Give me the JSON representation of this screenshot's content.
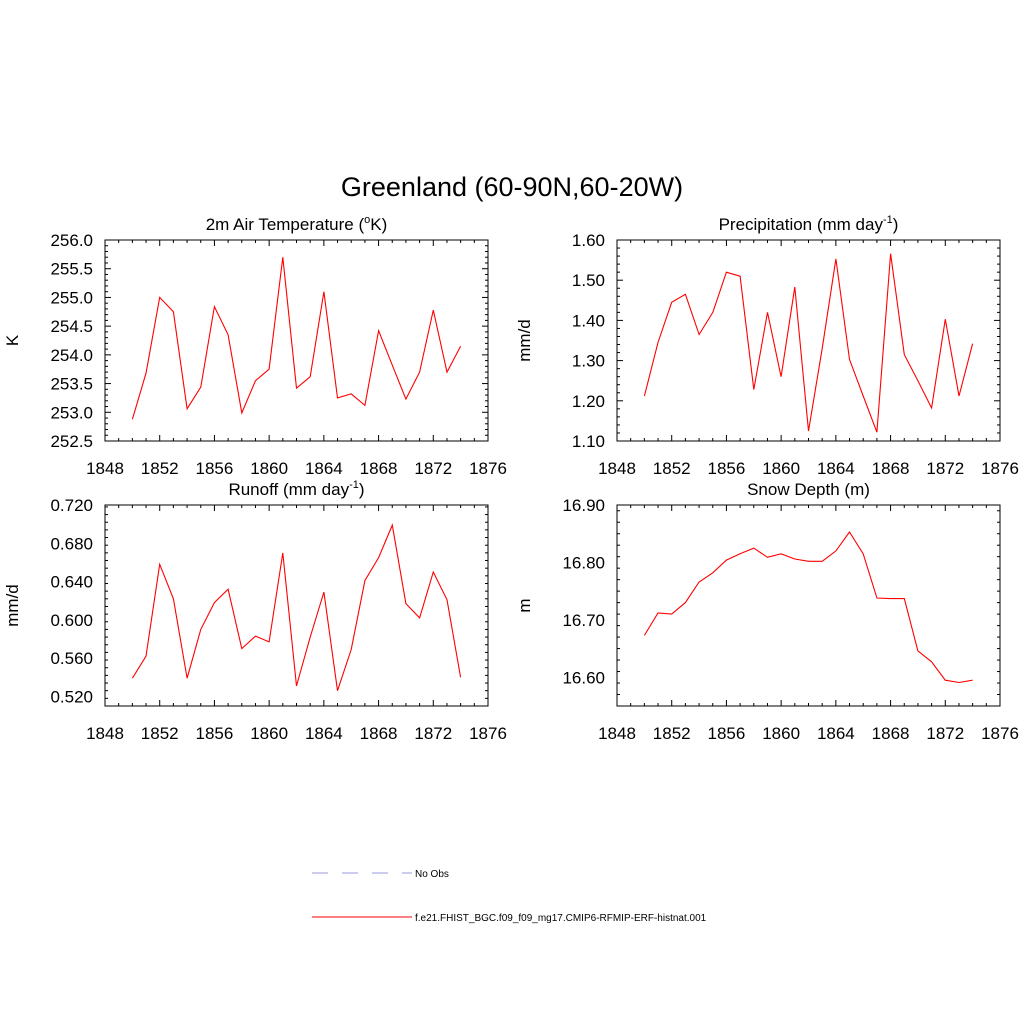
{
  "title": "Greenland (60-90N,60-20W)",
  "series_color": "#ff0000",
  "obs_color": "#9999dd",
  "legend": {
    "obs_label": "No Obs",
    "model_label": "f.e21.FHIST_BGC.f09_f09_mg17.CMIP6-RFMIP-ERF-histnat.001"
  },
  "chart_data": [
    {
      "type": "line",
      "title": "2m Air Temperature (",
      "title_sup": "o",
      "title_end": "K)",
      "ylabel": "K",
      "xlim": [
        1848,
        1876
      ],
      "ylim": [
        252.5,
        256.0
      ],
      "xticks": [
        "1848",
        "1852",
        "1856",
        "1860",
        "1864",
        "1868",
        "1872",
        "1876"
      ],
      "yticks": [
        "252.5",
        "253.0",
        "253.5",
        "254.0",
        "254.5",
        "255.0",
        "255.5",
        "256.0"
      ],
      "x": [
        1850,
        1851,
        1852,
        1853,
        1854,
        1855,
        1856,
        1857,
        1858,
        1859,
        1860,
        1861,
        1862,
        1863,
        1864,
        1865,
        1866,
        1867,
        1868,
        1869,
        1870,
        1871,
        1872,
        1873,
        1874
      ],
      "values": [
        252.88,
        253.68,
        255.0,
        254.75,
        253.06,
        253.44,
        254.84,
        254.35,
        252.99,
        253.55,
        253.75,
        255.7,
        253.42,
        253.62,
        255.1,
        253.25,
        253.32,
        253.12,
        254.42,
        253.82,
        253.23,
        253.7,
        254.78,
        253.7,
        254.15
      ]
    },
    {
      "type": "line",
      "title": "Precipitation (mm day",
      "title_sup": "-1",
      "title_end": ")",
      "ylabel": "mm/d",
      "xlim": [
        1848,
        1876
      ],
      "ylim": [
        1.1,
        1.6
      ],
      "xticks": [
        "1848",
        "1852",
        "1856",
        "1860",
        "1864",
        "1868",
        "1872",
        "1876"
      ],
      "yticks": [
        "1.10",
        "1.20",
        "1.30",
        "1.40",
        "1.50",
        "1.60"
      ],
      "x": [
        1850,
        1851,
        1852,
        1853,
        1854,
        1855,
        1856,
        1857,
        1858,
        1859,
        1860,
        1861,
        1862,
        1863,
        1864,
        1865,
        1866,
        1867,
        1868,
        1869,
        1870,
        1871,
        1872,
        1873,
        1874
      ],
      "values": [
        1.212,
        1.345,
        1.445,
        1.465,
        1.365,
        1.42,
        1.52,
        1.51,
        1.228,
        1.42,
        1.26,
        1.483,
        1.125,
        1.33,
        1.553,
        1.303,
        1.212,
        1.122,
        1.566,
        1.315,
        1.25,
        1.182,
        1.403,
        1.212,
        1.342
      ]
    },
    {
      "type": "line",
      "title": "Runoff (mm day",
      "title_sup": "-1",
      "title_end": ")",
      "ylabel": "mm/d",
      "xlim": [
        1848,
        1876
      ],
      "ylim": [
        0.51,
        0.72
      ],
      "xticks": [
        "1848",
        "1852",
        "1856",
        "1860",
        "1864",
        "1868",
        "1872",
        "1876"
      ],
      "yticks": [
        "0.520",
        "0.560",
        "0.600",
        "0.640",
        "0.680",
        "0.720"
      ],
      "x": [
        1850,
        1851,
        1852,
        1853,
        1854,
        1855,
        1856,
        1857,
        1858,
        1859,
        1860,
        1861,
        1862,
        1863,
        1864,
        1865,
        1866,
        1867,
        1868,
        1869,
        1870,
        1871,
        1872,
        1873,
        1874
      ],
      "values": [
        0.539,
        0.562,
        0.658,
        0.622,
        0.539,
        0.59,
        0.618,
        0.632,
        0.57,
        0.583,
        0.577,
        0.67,
        0.531,
        0.582,
        0.629,
        0.526,
        0.569,
        0.641,
        0.665,
        0.699,
        0.617,
        0.602,
        0.65,
        0.621,
        0.54
      ]
    },
    {
      "type": "line",
      "title": "Snow Depth (m)",
      "title_sup": "",
      "title_end": "",
      "ylabel": "m",
      "xlim": [
        1848,
        1876
      ],
      "ylim": [
        16.55,
        16.9
      ],
      "xticks": [
        "1848",
        "1852",
        "1856",
        "1860",
        "1864",
        "1868",
        "1872",
        "1876"
      ],
      "yticks": [
        "16.60",
        "16.70",
        "16.80",
        "16.90"
      ],
      "x": [
        1850,
        1851,
        1852,
        1853,
        1854,
        1855,
        1856,
        1857,
        1858,
        1859,
        1860,
        1861,
        1862,
        1863,
        1864,
        1865,
        1866,
        1867,
        1868,
        1869,
        1870,
        1871,
        1872,
        1873,
        1874
      ],
      "values": [
        16.673,
        16.712,
        16.71,
        16.73,
        16.766,
        16.782,
        16.804,
        16.815,
        16.825,
        16.809,
        16.815,
        16.806,
        16.802,
        16.802,
        16.82,
        16.853,
        16.815,
        16.738,
        16.737,
        16.737,
        16.646,
        16.627,
        16.595,
        16.591,
        16.595
      ]
    }
  ]
}
